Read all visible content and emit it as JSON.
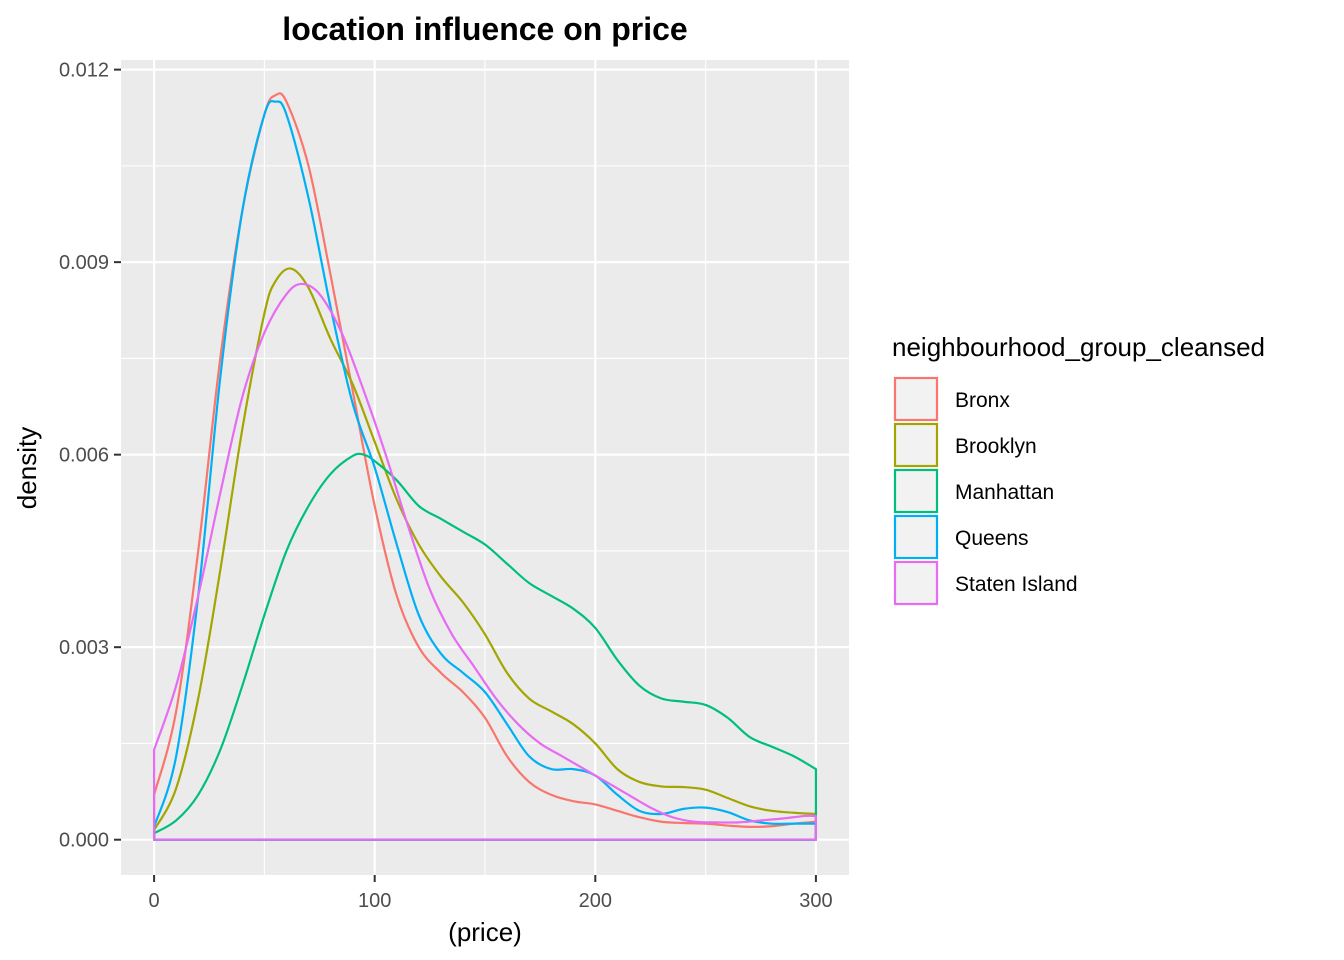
{
  "chart_data": {
    "type": "line",
    "title": "location influence on price",
    "xlabel": "(price)",
    "ylabel": "density",
    "xlim": [
      -15,
      315
    ],
    "ylim": [
      -0.00055,
      0.01215
    ],
    "x_ticks": [
      0,
      100,
      200,
      300
    ],
    "x_tick_labels": [
      "0",
      "100",
      "200",
      "300"
    ],
    "y_ticks": [
      0,
      0.003,
      0.006,
      0.009,
      0.012
    ],
    "y_tick_labels": [
      "0.000",
      "0.003",
      "0.006",
      "0.009",
      "0.012"
    ],
    "grid": true,
    "legend": {
      "title": "neighbourhood_group_cleansed",
      "position": "right"
    },
    "series": [
      {
        "name": "Bronx",
        "color": "#F8766D",
        "points": [
          [
            0,
            0.0007
          ],
          [
            10,
            0.002
          ],
          [
            20,
            0.0045
          ],
          [
            30,
            0.0075
          ],
          [
            40,
            0.0098
          ],
          [
            50,
            0.0113
          ],
          [
            55,
            0.0116
          ],
          [
            60,
            0.0115
          ],
          [
            70,
            0.0105
          ],
          [
            80,
            0.0088
          ],
          [
            90,
            0.007
          ],
          [
            100,
            0.0052
          ],
          [
            110,
            0.0038
          ],
          [
            120,
            0.003
          ],
          [
            130,
            0.0026
          ],
          [
            140,
            0.0023
          ],
          [
            150,
            0.0019
          ],
          [
            160,
            0.0013
          ],
          [
            170,
            0.0009
          ],
          [
            180,
            0.0007
          ],
          [
            190,
            0.0006
          ],
          [
            200,
            0.00055
          ],
          [
            210,
            0.00045
          ],
          [
            220,
            0.00035
          ],
          [
            230,
            0.00028
          ],
          [
            240,
            0.00026
          ],
          [
            250,
            0.00025
          ],
          [
            260,
            0.00022
          ],
          [
            270,
            0.0002
          ],
          [
            280,
            0.00021
          ],
          [
            290,
            0.00025
          ],
          [
            300,
            0.00028
          ]
        ]
      },
      {
        "name": "Brooklyn",
        "color": "#A3A500",
        "points": [
          [
            0,
            0.00015
          ],
          [
            10,
            0.0008
          ],
          [
            20,
            0.0022
          ],
          [
            30,
            0.0042
          ],
          [
            40,
            0.0064
          ],
          [
            50,
            0.0082
          ],
          [
            55,
            0.0087
          ],
          [
            62,
            0.0089
          ],
          [
            70,
            0.0086
          ],
          [
            80,
            0.0078
          ],
          [
            90,
            0.0071
          ],
          [
            100,
            0.0062
          ],
          [
            110,
            0.0053
          ],
          [
            120,
            0.0046
          ],
          [
            130,
            0.0041
          ],
          [
            140,
            0.0037
          ],
          [
            150,
            0.0032
          ],
          [
            160,
            0.0026
          ],
          [
            170,
            0.0022
          ],
          [
            180,
            0.002
          ],
          [
            190,
            0.0018
          ],
          [
            200,
            0.0015
          ],
          [
            210,
            0.0011
          ],
          [
            220,
            0.0009
          ],
          [
            230,
            0.00083
          ],
          [
            240,
            0.00082
          ],
          [
            250,
            0.00078
          ],
          [
            260,
            0.00065
          ],
          [
            270,
            0.00052
          ],
          [
            280,
            0.00045
          ],
          [
            290,
            0.00042
          ],
          [
            300,
            0.0004
          ]
        ]
      },
      {
        "name": "Manhattan",
        "color": "#00BF7D",
        "points": [
          [
            0,
            0.0001
          ],
          [
            10,
            0.0003
          ],
          [
            20,
            0.0007
          ],
          [
            30,
            0.0014
          ],
          [
            40,
            0.0024
          ],
          [
            50,
            0.0035
          ],
          [
            60,
            0.0045
          ],
          [
            70,
            0.0052
          ],
          [
            80,
            0.0057
          ],
          [
            90,
            0.00598
          ],
          [
            95,
            0.006
          ],
          [
            100,
            0.0059
          ],
          [
            110,
            0.0056
          ],
          [
            120,
            0.0052
          ],
          [
            130,
            0.005
          ],
          [
            140,
            0.0048
          ],
          [
            150,
            0.0046
          ],
          [
            160,
            0.0043
          ],
          [
            170,
            0.004
          ],
          [
            180,
            0.0038
          ],
          [
            190,
            0.0036
          ],
          [
            200,
            0.0033
          ],
          [
            210,
            0.0028
          ],
          [
            220,
            0.0024
          ],
          [
            230,
            0.0022
          ],
          [
            240,
            0.00215
          ],
          [
            250,
            0.0021
          ],
          [
            260,
            0.0019
          ],
          [
            270,
            0.0016
          ],
          [
            280,
            0.00145
          ],
          [
            290,
            0.0013
          ],
          [
            300,
            0.0011
          ]
        ]
      },
      {
        "name": "Queens",
        "color": "#00B0F6",
        "points": [
          [
            0,
            0.0002
          ],
          [
            10,
            0.0013
          ],
          [
            20,
            0.0038
          ],
          [
            30,
            0.0072
          ],
          [
            40,
            0.0098
          ],
          [
            50,
            0.0113
          ],
          [
            55,
            0.0115
          ],
          [
            60,
            0.0113
          ],
          [
            70,
            0.01
          ],
          [
            80,
            0.0083
          ],
          [
            90,
            0.0068
          ],
          [
            100,
            0.0058
          ],
          [
            110,
            0.0046
          ],
          [
            120,
            0.0035
          ],
          [
            130,
            0.0029
          ],
          [
            140,
            0.0026
          ],
          [
            150,
            0.0023
          ],
          [
            160,
            0.0018
          ],
          [
            170,
            0.0013
          ],
          [
            180,
            0.0011
          ],
          [
            190,
            0.0011
          ],
          [
            200,
            0.001
          ],
          [
            210,
            0.0007
          ],
          [
            220,
            0.00045
          ],
          [
            230,
            0.0004
          ],
          [
            240,
            0.00048
          ],
          [
            250,
            0.0005
          ],
          [
            260,
            0.00043
          ],
          [
            270,
            0.0003
          ],
          [
            280,
            0.00025
          ],
          [
            290,
            0.00025
          ],
          [
            300,
            0.00025
          ]
        ]
      },
      {
        "name": "Staten Island",
        "color": "#E76BF3",
        "points": [
          [
            0,
            0.0014
          ],
          [
            10,
            0.0024
          ],
          [
            20,
            0.0038
          ],
          [
            30,
            0.0054
          ],
          [
            40,
            0.0069
          ],
          [
            50,
            0.0079
          ],
          [
            60,
            0.0085
          ],
          [
            67,
            0.00866
          ],
          [
            75,
            0.0085
          ],
          [
            85,
            0.0079
          ],
          [
            95,
            0.007
          ],
          [
            105,
            0.006
          ],
          [
            115,
            0.0049
          ],
          [
            125,
            0.0039
          ],
          [
            135,
            0.0032
          ],
          [
            145,
            0.0027
          ],
          [
            155,
            0.0022
          ],
          [
            165,
            0.0018
          ],
          [
            175,
            0.0015
          ],
          [
            185,
            0.0013
          ],
          [
            195,
            0.0011
          ],
          [
            205,
            0.0009
          ],
          [
            215,
            0.0007
          ],
          [
            225,
            0.0005
          ],
          [
            235,
            0.00035
          ],
          [
            245,
            0.00028
          ],
          [
            255,
            0.00027
          ],
          [
            265,
            0.00027
          ],
          [
            275,
            0.0003
          ],
          [
            285,
            0.00033
          ],
          [
            295,
            0.00037
          ],
          [
            300,
            0.00037
          ]
        ]
      }
    ]
  }
}
